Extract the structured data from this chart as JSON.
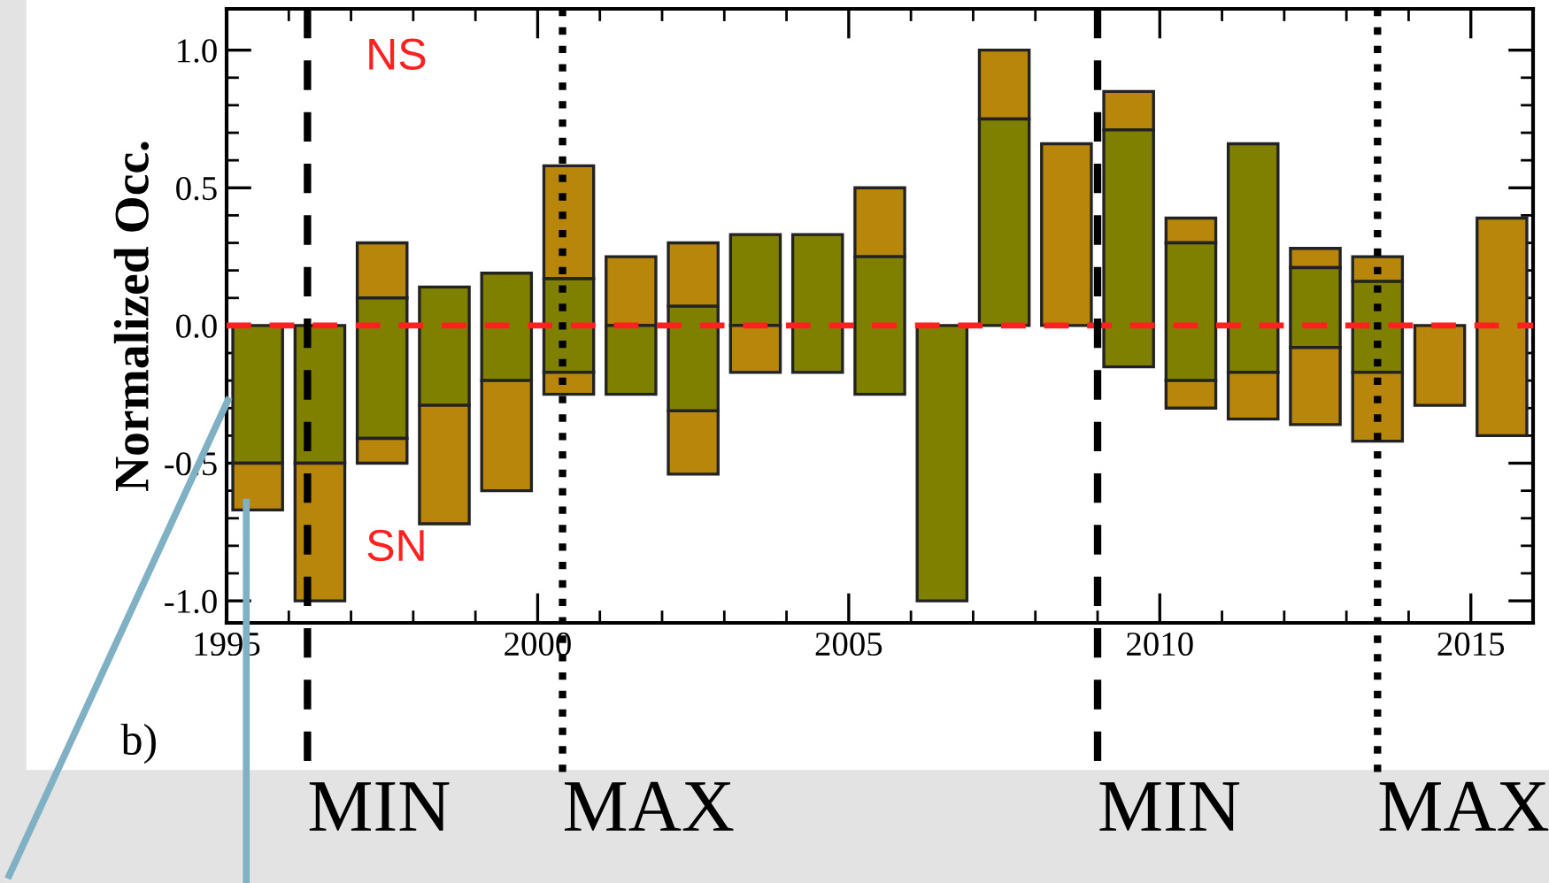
{
  "chart_data": {
    "type": "bar",
    "ylabel": "Normalized Occ.",
    "x": [
      1995.5,
      1996.5,
      1997.5,
      1998.5,
      1999.5,
      2000.5,
      2001.5,
      2002.5,
      2003.5,
      2004.5,
      2005.5,
      2006.5,
      2007.5,
      2008.5,
      2009.5,
      2010.5,
      2011.5,
      2012.5,
      2013.5,
      2014.5,
      2015.5
    ],
    "series": [
      {
        "color": "#b8860b",
        "base": [
          null,
          null,
          0.1,
          null,
          null,
          0.17,
          0,
          0.07,
          null,
          null,
          0.25,
          null,
          0.75,
          0,
          0.71,
          0.3,
          null,
          0.21,
          0.16,
          -0.29,
          -0.4
        ],
        "values": [
          null,
          null,
          0.2,
          null,
          null,
          0.41,
          0.25,
          0.23,
          null,
          null,
          0.25,
          null,
          0.25,
          0.66,
          0.14,
          0.09,
          null,
          0.07,
          0.09,
          0.29,
          0.79
        ]
      },
      {
        "color": "#808000",
        "base": [
          -0.5,
          -0.5,
          -0.41,
          -0.29,
          -0.2,
          -0.17,
          -0.25,
          -0.31,
          0,
          -0.17,
          -0.25,
          -1.0,
          0,
          null,
          -0.15,
          -0.2,
          -0.17,
          -0.08,
          -0.17,
          null,
          null
        ],
        "values": [
          0.5,
          0.5,
          0.51,
          0.43,
          0.39,
          0.34,
          0.25,
          0.38,
          0.33,
          0.5,
          0.5,
          1.0,
          0.75,
          null,
          0.86,
          0.5,
          0.83,
          0.29,
          0.33,
          null,
          null
        ]
      },
      {
        "color": "#b8860b",
        "base": [
          -0.67,
          -1.0,
          -0.5,
          -0.72,
          -0.6,
          -0.25,
          null,
          -0.54,
          -0.17,
          null,
          null,
          null,
          null,
          null,
          null,
          -0.3,
          -0.34,
          -0.36,
          -0.42,
          null,
          null
        ],
        "values": [
          0.17,
          0.5,
          0.09,
          0.43,
          0.4,
          0.08,
          null,
          0.23,
          0.17,
          null,
          null,
          null,
          null,
          null,
          null,
          0.1,
          0.17,
          0.28,
          0.25,
          null,
          null
        ]
      }
    ],
    "xlim": [
      1995,
      2016
    ],
    "xticks": [
      1995,
      2000,
      2005,
      2010,
      2015
    ],
    "ylim": [
      -1.08,
      1.15
    ],
    "yticks": [
      {
        "value": -1.0,
        "label": "-1.0"
      },
      {
        "value": -0.5,
        "label": "-0.5"
      },
      {
        "value": 0.0,
        "label": "0.0"
      },
      {
        "value": 0.5,
        "label": "0.5"
      },
      {
        "value": 1.0,
        "label": "1.0"
      }
    ],
    "ref_lines": [
      {
        "axis": "y",
        "value": 0,
        "color": "#ff2020",
        "line_style": "dashed"
      },
      {
        "axis": "x",
        "value": 1996.3,
        "label": "MIN",
        "color": "#000000",
        "line_style": "dashed"
      },
      {
        "axis": "x",
        "value": 2000.4,
        "label": "MAX",
        "color": "#000000",
        "line_style": "dotted"
      },
      {
        "axis": "x",
        "value": 2009.0,
        "label": "MIN",
        "color": "#000000",
        "line_style": "dashed"
      },
      {
        "axis": "x",
        "value": 2013.5,
        "label": "MAX",
        "color": "#000000",
        "line_style": "dotted"
      }
    ],
    "annotations": [
      "NS",
      "SN",
      "b)"
    ],
    "grid": false,
    "legend": false
  }
}
